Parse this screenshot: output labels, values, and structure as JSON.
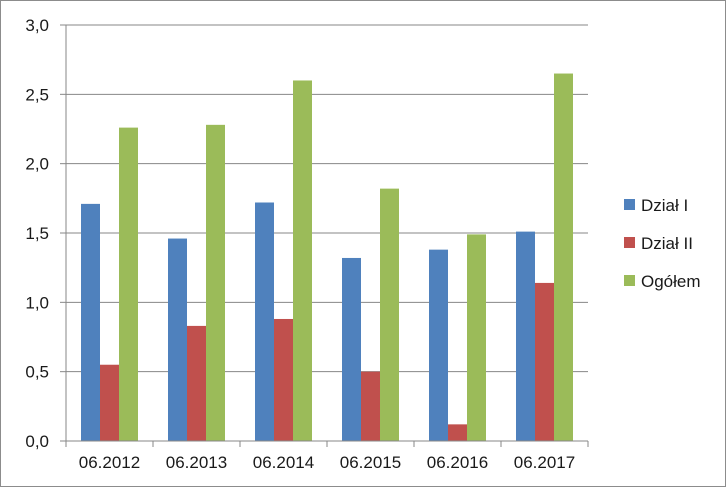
{
  "chart_data": {
    "type": "bar",
    "title": "",
    "xlabel": "",
    "ylabel": "",
    "categories": [
      "06.2012",
      "06.2013",
      "06.2014",
      "06.2015",
      "06.2016",
      "06.2017"
    ],
    "series": [
      {
        "name": "Dział I",
        "color": "#4f81bd",
        "values": [
          1.71,
          1.46,
          1.72,
          1.32,
          1.38,
          1.51
        ]
      },
      {
        "name": "Dział II",
        "color": "#c0504d",
        "values": [
          0.55,
          0.83,
          0.88,
          0.5,
          0.12,
          1.14
        ]
      },
      {
        "name": "Ogółem",
        "color": "#9bbb59",
        "values": [
          2.26,
          2.28,
          2.6,
          1.82,
          1.49,
          2.65
        ]
      }
    ],
    "ylim": [
      0,
      3.0
    ],
    "yticks": [
      "0,0",
      "0,5",
      "1,0",
      "1,5",
      "2,0",
      "2,5",
      "3,0"
    ],
    "grid": true,
    "legend_position": "right"
  }
}
